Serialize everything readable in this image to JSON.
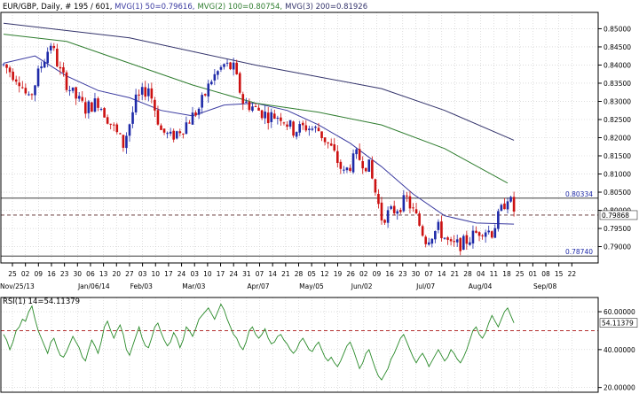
{
  "header": {
    "symbol": "EUR/GBP",
    "info": ", Daily, # 195 / 601, ",
    "ma1_label": "MVG(1) 50=0.79616,",
    "ma2_label": "MVG(2) 100=0.80754,",
    "ma3_label": "MVG(3) 200=0.81926"
  },
  "rsi_panel": {
    "label": "RSI(1) 14=54.11379"
  },
  "colors": {
    "background": "#ffffff",
    "frame": "#000000",
    "grid": "#c8c8c8",
    "bull_candle": "#1f2aa8",
    "bear_candle": "#cc1111",
    "ma50": "#3a3aa0",
    "ma100": "#2f7d2f",
    "ma200": "#33336b",
    "rsi_line": "#2a8a2a",
    "dashed_line": "#aa1111"
  },
  "chart_data": [
    {
      "type": "candlestick",
      "title": "EUR/GBP, Daily",
      "xlabel": "",
      "ylabel": "",
      "ylim": [
        0.7855,
        0.8545
      ],
      "y_ticks": [
        "0.85000",
        "0.84500",
        "0.84000",
        "0.83500",
        "0.83000",
        "0.82500",
        "0.82000",
        "0.81500",
        "0.81000",
        "0.80500",
        "0.80000",
        "0.79500",
        "0.79000"
      ],
      "y_tick_values": [
        0.85,
        0.845,
        0.84,
        0.835,
        0.83,
        0.825,
        0.82,
        0.815,
        0.81,
        0.805,
        0.8,
        0.795,
        0.79
      ],
      "x_day_labels": [
        "25",
        "02",
        "09",
        "16",
        "23",
        "30",
        "06",
        "13",
        "20",
        "27",
        "03",
        "10",
        "17",
        "24",
        "03",
        "10",
        "17",
        "24",
        "31",
        "07",
        "14",
        "21",
        "28",
        "05",
        "12",
        "19",
        "26",
        "02",
        "09",
        "16",
        "23",
        "30",
        "07",
        "14",
        "21",
        "28",
        "04",
        "11",
        "18",
        "25",
        "01",
        "08",
        "15",
        "22"
      ],
      "x_month_labels": [
        "Nov/25/13",
        "Jan/06/14",
        "Feb/03",
        "Mar/03",
        "Apr/07",
        "May/05",
        "Jun/02",
        "Jul/07",
        "Aug/04",
        "Sep/08"
      ],
      "price_tags": [
        {
          "label": "0.80334",
          "value": 0.80334
        },
        {
          "label": "0.79868",
          "value": 0.79868
        },
        {
          "label": "0.78740",
          "value": 0.7874
        }
      ],
      "horizontal_lines": [
        {
          "value": 0.80334,
          "style": "solid"
        },
        {
          "value": 0.79868,
          "style": "dashed"
        },
        {
          "value": 0.7874,
          "style": "solid"
        }
      ],
      "anchors": [
        [
          0,
          0.84
        ],
        [
          5,
          0.836
        ],
        [
          8,
          0.83
        ],
        [
          12,
          0.84
        ],
        [
          15,
          0.846
        ],
        [
          18,
          0.838
        ],
        [
          22,
          0.832
        ],
        [
          26,
          0.828
        ],
        [
          30,
          0.83
        ],
        [
          34,
          0.824
        ],
        [
          38,
          0.818
        ],
        [
          42,
          0.83
        ],
        [
          46,
          0.834
        ],
        [
          50,
          0.822
        ],
        [
          53,
          0.82
        ],
        [
          57,
          0.823
        ],
        [
          62,
          0.828
        ],
        [
          66,
          0.836
        ],
        [
          70,
          0.84
        ],
        [
          73,
          0.839
        ],
        [
          76,
          0.83
        ],
        [
          80,
          0.828
        ],
        [
          84,
          0.826
        ],
        [
          88,
          0.826
        ],
        [
          92,
          0.822
        ],
        [
          96,
          0.823
        ],
        [
          100,
          0.822
        ],
        [
          104,
          0.817
        ],
        [
          108,
          0.81
        ],
        [
          112,
          0.815
        ],
        [
          116,
          0.812
        ],
        [
          118,
          0.805
        ],
        [
          120,
          0.798
        ],
        [
          124,
          0.8
        ],
        [
          128,
          0.803
        ],
        [
          131,
          0.798
        ],
        [
          134,
          0.792
        ],
        [
          138,
          0.795
        ],
        [
          142,
          0.79
        ],
        [
          146,
          0.791
        ],
        [
          149,
          0.793
        ],
        [
          152,
          0.795
        ],
        [
          155,
          0.794
        ],
        [
          158,
          0.8
        ],
        [
          160,
          0.804
        ],
        [
          162,
          0.8
        ]
      ],
      "moving_averages": [
        {
          "name": "MVG(1) 50",
          "points": [
            [
              0,
              0.8405
            ],
            [
              10,
              0.8425
            ],
            [
              20,
              0.837
            ],
            [
              30,
              0.833
            ],
            [
              40,
              0.831
            ],
            [
              50,
              0.8275
            ],
            [
              60,
              0.826
            ],
            [
              70,
              0.829
            ],
            [
              80,
              0.8295
            ],
            [
              90,
              0.8275
            ],
            [
              100,
              0.8235
            ],
            [
              110,
              0.8185
            ],
            [
              120,
              0.812
            ],
            [
              130,
              0.8045
            ],
            [
              140,
              0.7985
            ],
            [
              150,
              0.7965
            ],
            [
              162,
              0.7962
            ]
          ]
        },
        {
          "name": "MVG(2) 100",
          "points": [
            [
              0,
              0.8485
            ],
            [
              20,
              0.8465
            ],
            [
              40,
              0.8405
            ],
            [
              60,
              0.8345
            ],
            [
              80,
              0.8295
            ],
            [
              100,
              0.827
            ],
            [
              120,
              0.8235
            ],
            [
              140,
              0.817
            ],
            [
              160,
              0.8075
            ]
          ]
        },
        {
          "name": "MVG(3) 200",
          "points": [
            [
              0,
              0.8515
            ],
            [
              40,
              0.8475
            ],
            [
              80,
              0.84
            ],
            [
              120,
              0.8335
            ],
            [
              140,
              0.8275
            ],
            [
              162,
              0.8193
            ]
          ]
        }
      ]
    },
    {
      "type": "line",
      "title": "RSI(1) 14=54.11379",
      "xlabel": "",
      "ylabel": "",
      "ylim": [
        17.5,
        67.5
      ],
      "y_ticks": [
        "60.00000",
        "40.00000",
        "20.00000"
      ],
      "y_tick_values": [
        60,
        40,
        20
      ],
      "current_value_label": "54.11379",
      "current_value": 54.11379,
      "reference_line": {
        "value": 50,
        "style": "dashed"
      },
      "series": [
        {
          "name": "RSI(1) 14",
          "values": [
            48,
            45,
            40,
            44,
            50,
            52,
            56,
            55,
            60,
            63,
            56,
            50,
            46,
            42,
            38,
            44,
            46,
            41,
            37,
            36,
            39,
            43,
            47,
            44,
            41,
            36,
            34,
            40,
            45,
            42,
            38,
            44,
            52,
            55,
            50,
            46,
            50,
            53,
            48,
            40,
            37,
            42,
            47,
            52,
            46,
            42,
            41,
            46,
            52,
            54,
            49,
            45,
            42,
            44,
            49,
            46,
            41,
            45,
            52,
            50,
            47,
            51,
            56,
            58,
            60,
            62,
            59,
            56,
            60,
            64,
            61,
            56,
            52,
            48,
            46,
            42,
            40,
            44,
            50,
            52,
            48,
            46,
            48,
            51,
            46,
            43,
            44,
            47,
            48,
            45,
            43,
            40,
            38,
            40,
            44,
            46,
            43,
            40,
            39,
            42,
            44,
            40,
            36,
            34,
            36,
            33,
            31,
            34,
            38,
            42,
            44,
            40,
            35,
            30,
            33,
            38,
            40,
            35,
            30,
            26,
            24,
            27,
            30,
            35,
            38,
            42,
            46,
            48,
            44,
            40,
            36,
            33,
            36,
            38,
            35,
            31,
            34,
            37,
            40,
            37,
            34,
            36,
            40,
            38,
            35,
            33,
            36,
            40,
            45,
            50,
            52,
            48,
            46,
            49,
            54,
            58,
            55,
            52,
            56,
            60,
            62,
            58,
            54.11
          ]
        }
      ]
    }
  ]
}
